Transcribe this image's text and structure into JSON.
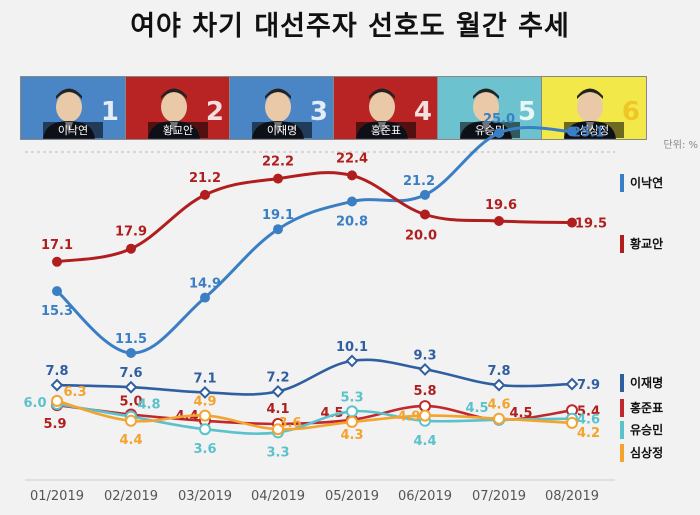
{
  "title": "여야 차기 대선주자 선호도 월간 추세",
  "unit": "단위: %",
  "candidates": [
    {
      "name": "이낙연",
      "num": "1",
      "bg": "#4a86c5",
      "num_color": "#ffffff"
    },
    {
      "name": "황교안",
      "num": "2",
      "bg": "#b82424",
      "num_color": "#ffffff"
    },
    {
      "name": "이재명",
      "num": "3",
      "bg": "#4a86c5",
      "num_color": "#ffffff"
    },
    {
      "name": "홍준표",
      "num": "4",
      "bg": "#b82424",
      "num_color": "#ffffff"
    },
    {
      "name": "유승민",
      "num": "5",
      "bg": "#6cc3cf",
      "num_color": "#ffffff"
    },
    {
      "name": "심상정",
      "num": "6",
      "bg": "#f2e84a",
      "num_color": "#f0c020"
    }
  ],
  "chart_data": {
    "type": "line",
    "title": "여야 차기 대선주자 선호도 월간 추세",
    "x": [
      "01/2019",
      "02/2019",
      "03/2019",
      "04/2019",
      "05/2019",
      "06/2019",
      "07/2019",
      "08/2019"
    ],
    "series": [
      {
        "name": "이낙연",
        "color": "#3a7fc4",
        "values": [
          15.3,
          11.5,
          14.9,
          19.1,
          20.8,
          21.2,
          25.0,
          25.1
        ]
      },
      {
        "name": "황교안",
        "color": "#b01e1e",
        "values": [
          17.1,
          17.9,
          21.2,
          22.2,
          22.4,
          20.0,
          19.6,
          19.5
        ]
      },
      {
        "name": "이재명",
        "color": "#2f5fa0",
        "values": [
          7.8,
          7.6,
          7.1,
          7.2,
          10.1,
          9.3,
          7.8,
          7.9
        ]
      },
      {
        "name": "홍준표",
        "color": "#c0282d",
        "values": [
          5.9,
          5.0,
          4.4,
          4.1,
          4.5,
          5.8,
          4.5,
          5.4
        ]
      },
      {
        "name": "유승민",
        "color": "#5bc2cc",
        "values": [
          6.0,
          4.8,
          3.6,
          3.3,
          5.3,
          4.4,
          4.5,
          4.6
        ]
      },
      {
        "name": "심상정",
        "color": "#f3a32e",
        "values": [
          6.3,
          4.4,
          4.9,
          3.6,
          4.3,
          4.9,
          4.6,
          4.2
        ]
      }
    ]
  }
}
